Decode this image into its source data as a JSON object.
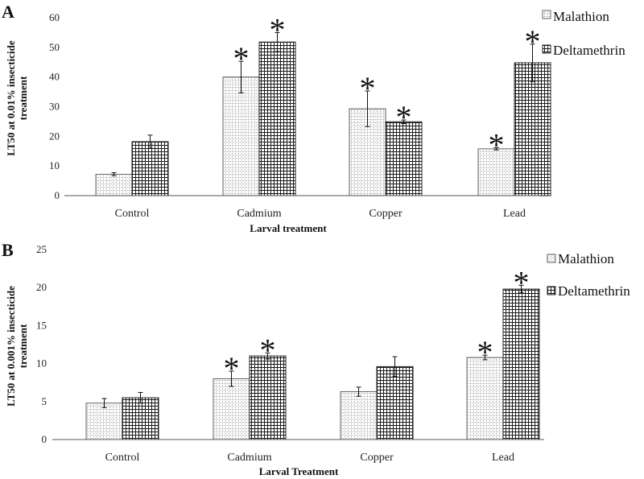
{
  "figure_labels": {
    "panel_a": "A",
    "panel_b": "B"
  },
  "chart_data": [
    {
      "type": "bar",
      "panel": "A",
      "title": "",
      "xlabel": "Larval treatment",
      "ylabel_lines": [
        "LT50 at 0.01% insecticide",
        "treatment"
      ],
      "categories": [
        "Control",
        "Cadmium",
        "Copper",
        "Lead"
      ],
      "ylim": [
        0,
        60
      ],
      "yticks": [
        0,
        10,
        20,
        30,
        40,
        50,
        60
      ],
      "series": [
        {
          "name": "Malathion",
          "values": [
            7.2,
            40,
            29.3,
            15.8
          ],
          "errors": [
            0.5,
            5.3,
            6.0,
            0.4
          ],
          "significant": [
            false,
            true,
            true,
            true
          ]
        },
        {
          "name": "Deltamethrin",
          "values": [
            18.2,
            51.8,
            24.9,
            44.8
          ],
          "errors": [
            2.2,
            3.2,
            0.6,
            6.3
          ],
          "significant": [
            false,
            true,
            true,
            true
          ]
        }
      ],
      "significance_marker": "*",
      "legend_position": "top-right"
    },
    {
      "type": "bar",
      "panel": "B",
      "title": "",
      "xlabel": "Larval Treatment",
      "ylabel_lines": [
        "LT50 at  0.001% insecticide",
        "treatment"
      ],
      "categories": [
        "Control",
        "Cadmium",
        "Copper",
        "Lead"
      ],
      "ylim": [
        0,
        25
      ],
      "yticks": [
        0,
        5,
        10,
        15,
        20,
        25
      ],
      "series": [
        {
          "name": "Malathion",
          "values": [
            4.8,
            8.0,
            6.3,
            10.8
          ],
          "errors": [
            0.6,
            1.0,
            0.6,
            0.3
          ],
          "significant": [
            false,
            true,
            false,
            true
          ]
        },
        {
          "name": "Deltamethrin",
          "values": [
            5.5,
            11.0,
            9.6,
            19.8
          ],
          "errors": [
            0.7,
            0.4,
            1.3,
            0.5
          ],
          "significant": [
            false,
            true,
            false,
            true
          ]
        }
      ],
      "significance_marker": "*",
      "legend_position": "top-right"
    }
  ]
}
